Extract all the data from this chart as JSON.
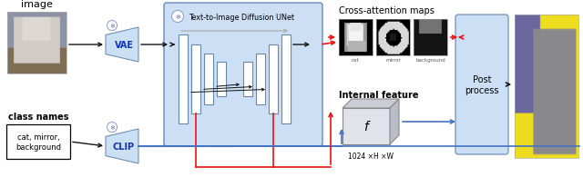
{
  "bg_color": "#ffffff",
  "light_blue": "#cce0f5",
  "unet_bg": "#ccdff5",
  "arrow_blue": "#4472c4",
  "arrow_red": "#ee1111",
  "arrow_gray": "#999999",
  "arrow_black": "#111111",
  "label_image": "image",
  "label_class_names": "class names",
  "label_class_text": "cat, mirror,\nbackground",
  "label_vae": "VAE",
  "label_clip": "CLIP",
  "label_unet": "Text-to-Image Diffusion UNet",
  "label_cross_attn": "Cross-attention maps",
  "label_internal": "Internal feature",
  "label_post": "Post\nprocess",
  "label_feature_dim": "1024 ×H ×W",
  "label_cat": "cat",
  "label_mirror": "mirror",
  "label_background": "background",
  "label_f": "f"
}
